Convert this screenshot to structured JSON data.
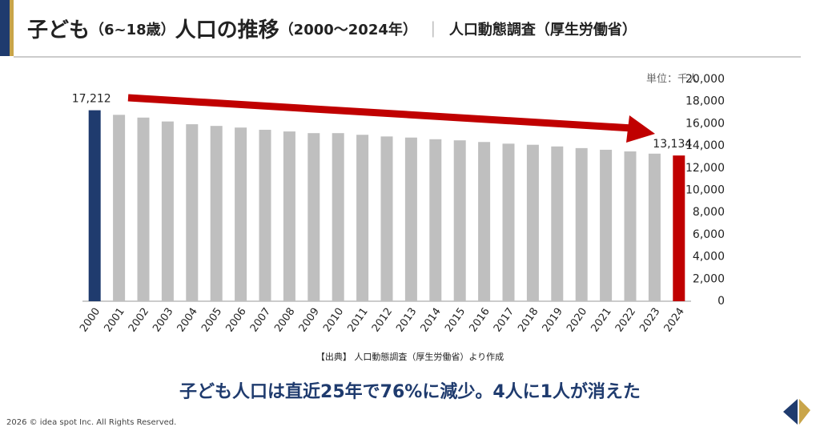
{
  "chart_data": {
    "type": "bar",
    "title_parts": [
      "子ども",
      "（6~18歳）",
      "人口の推移",
      "（2000～2024年）",
      "｜",
      "人口動態調査（厚生労働省）"
    ],
    "unit_label": "単位：千人",
    "source": "【出典】 人口動態調査（厚生労働省）より作成",
    "headline": "子ども人口は直近25年で76%に減少。4人に1人が消えた",
    "footer": "2026 © idea spot Inc. All Rights Reserved.",
    "categories": [
      "2000",
      "2001",
      "2002",
      "2003",
      "2004",
      "2005",
      "2006",
      "2007",
      "2008",
      "2009",
      "2010",
      "2011",
      "2012",
      "2013",
      "2014",
      "2015",
      "2016",
      "2017",
      "2018",
      "2019",
      "2020",
      "2021",
      "2022",
      "2023",
      "2024"
    ],
    "values": [
      17212,
      16800,
      16550,
      16200,
      15950,
      15800,
      15650,
      15450,
      15300,
      15150,
      15150,
      15000,
      14850,
      14750,
      14600,
      14500,
      14350,
      14200,
      14100,
      13950,
      13800,
      13650,
      13500,
      13300,
      13134
    ],
    "value_labels": [
      "17,212",
      null,
      null,
      null,
      null,
      null,
      null,
      null,
      null,
      null,
      null,
      null,
      null,
      null,
      null,
      null,
      null,
      null,
      null,
      null,
      null,
      null,
      null,
      null,
      "13,134"
    ],
    "colors": [
      "#1f3b6e",
      "#bfbfbf",
      "#bfbfbf",
      "#bfbfbf",
      "#bfbfbf",
      "#bfbfbf",
      "#bfbfbf",
      "#bfbfbf",
      "#bfbfbf",
      "#bfbfbf",
      "#bfbfbf",
      "#bfbfbf",
      "#bfbfbf",
      "#bfbfbf",
      "#bfbfbf",
      "#bfbfbf",
      "#bfbfbf",
      "#bfbfbf",
      "#bfbfbf",
      "#bfbfbf",
      "#bfbfbf",
      "#bfbfbf",
      "#bfbfbf",
      "#bfbfbf",
      "#c00000"
    ],
    "ylim": [
      0,
      20000
    ],
    "yticks": [
      0,
      {
        "value": 2000,
        "label": "2,000"
      },
      {
        "value": 4000,
        "label": "4,000"
      },
      {
        "value": 6000,
        "label": "6,000"
      },
      {
        "value": 8000,
        "label": "8,000"
      },
      {
        "value": 10000,
        "label": "10,000"
      },
      {
        "value": 12000,
        "label": "12,000"
      },
      {
        "value": 14000,
        "label": "14,000"
      },
      {
        "value": 16000,
        "label": "16,000"
      },
      {
        "value": 18000,
        "label": "18,000"
      },
      {
        "value": 20000,
        "label": "20,000"
      }
    ],
    "grid": false
  }
}
